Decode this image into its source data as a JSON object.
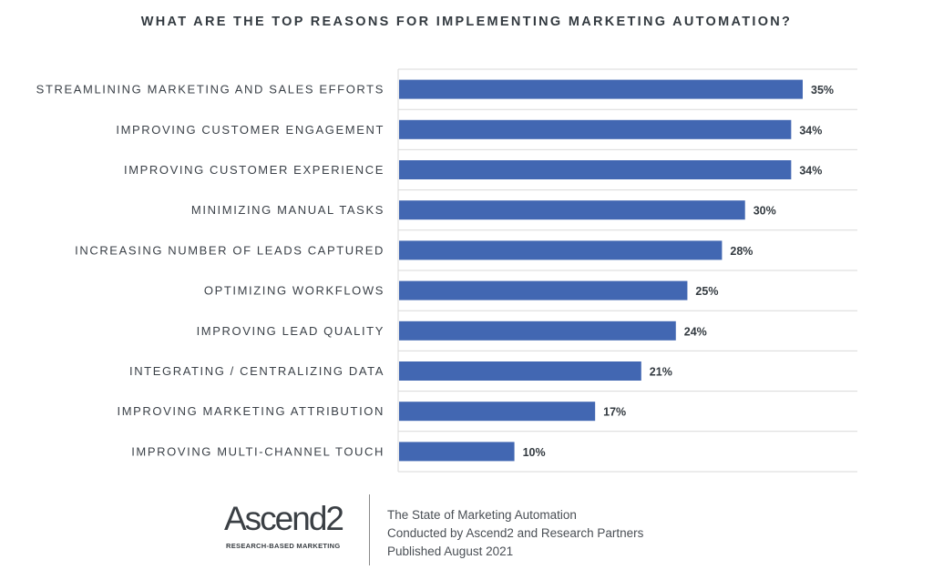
{
  "chart_data": {
    "type": "bar",
    "orientation": "horizontal",
    "title": "WHAT ARE THE TOP REASONS FOR IMPLEMENTING MARKETING AUTOMATION?",
    "categories": [
      "STREAMLINING MARKETING AND SALES EFFORTS",
      "IMPROVING CUSTOMER ENGAGEMENT",
      "IMPROVING CUSTOMER EXPERIENCE",
      "MINIMIZING MANUAL TASKS",
      "INCREASING NUMBER OF LEADS CAPTURED",
      "OPTIMIZING WORKFLOWS",
      "IMPROVING LEAD QUALITY",
      "INTEGRATING / CENTRALIZING DATA",
      "IMPROVING MARKETING ATTRIBUTION",
      "IMPROVING MULTI-CHANNEL TOUCH"
    ],
    "values": [
      35,
      34,
      34,
      30,
      28,
      25,
      24,
      21,
      17,
      10
    ],
    "value_labels": [
      "35%",
      "34%",
      "34%",
      "30%",
      "28%",
      "25%",
      "24%",
      "21%",
      "17%",
      "10%"
    ],
    "unit": "%",
    "xlim": [
      0,
      40
    ],
    "grid": true,
    "bar_color": "#4267b2"
  },
  "footer": {
    "logo": {
      "name": "Ascend2",
      "tagline": "RESEARCH-BASED MARKETING"
    },
    "lines": [
      "The State of Marketing Automation",
      "Conducted by Ascend2 and Research Partners",
      "Published August 2021"
    ]
  }
}
